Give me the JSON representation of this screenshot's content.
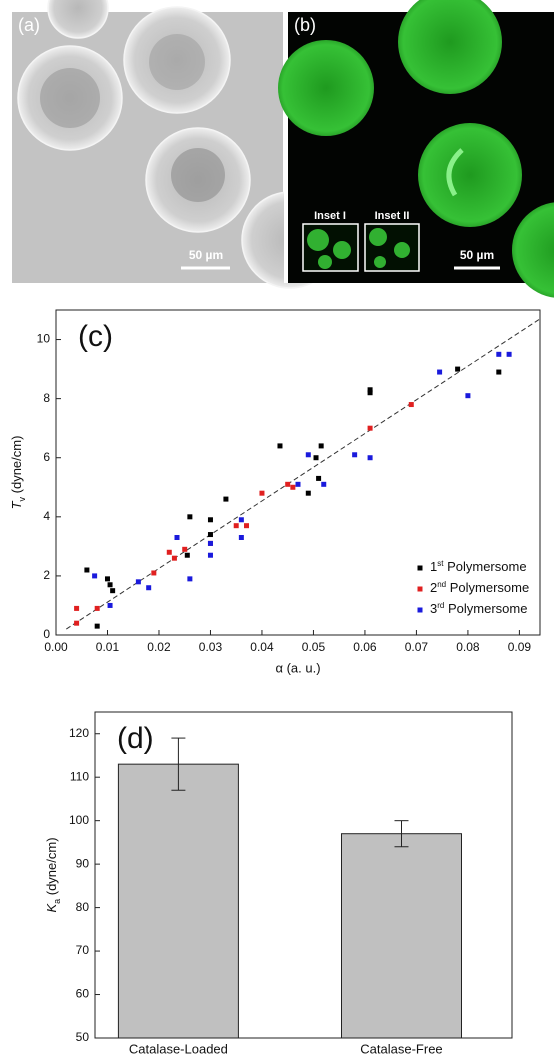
{
  "images": {
    "panel_a": {
      "label": "(a)",
      "scale_bar": "50 µm"
    },
    "panel_b": {
      "label": "(b)",
      "scale_bar": "50 µm",
      "insets": [
        "Inset I",
        "Inset II"
      ]
    }
  },
  "chart_data": [
    {
      "type": "scatter",
      "panel_label": "(c)",
      "x_label": "α (a. u.)",
      "y_label": "Tv (dyne/cm)",
      "xlim": [
        0,
        0.094
      ],
      "ylim": [
        0,
        11
      ],
      "xticks": [
        {
          "value": 0,
          "label": "0.00"
        },
        {
          "value": 0.01,
          "label": "0.01"
        },
        {
          "value": 0.02,
          "label": "0.02"
        },
        {
          "value": 0.03,
          "label": "0.03"
        },
        {
          "value": 0.04,
          "label": "0.04"
        },
        {
          "value": 0.05,
          "label": "0.05"
        },
        {
          "value": 0.06,
          "label": "0.06"
        },
        {
          "value": 0.07,
          "label": "0.07"
        },
        {
          "value": 0.08,
          "label": "0.08"
        },
        {
          "value": 0.09,
          "label": "0.09"
        }
      ],
      "yticks": [
        0,
        2,
        4,
        6,
        8,
        10
      ],
      "legend": "lower right",
      "fit": {
        "color": "#333333",
        "x": [
          0.002,
          0.094
        ],
        "y": [
          0.2,
          10.7
        ]
      },
      "series": [
        {
          "name": "1st Polymersome",
          "color": "#000000",
          "x": [
            0.006,
            0.008,
            0.01,
            0.0105,
            0.011,
            0.0255,
            0.026,
            0.03,
            0.03,
            0.033,
            0.0435,
            0.049,
            0.0505,
            0.051,
            0.0515,
            0.061,
            0.061,
            0.078,
            0.086
          ],
          "values": [
            2.2,
            0.3,
            1.9,
            1.7,
            1.5,
            2.7,
            4.0,
            3.9,
            3.4,
            4.6,
            6.4,
            4.8,
            6.0,
            5.3,
            6.4,
            8.2,
            8.3,
            9.0,
            8.9
          ]
        },
        {
          "name": "2nd Polymersome",
          "color": "#e02020",
          "x": [
            0.004,
            0.004,
            0.008,
            0.019,
            0.022,
            0.023,
            0.025,
            0.03,
            0.035,
            0.037,
            0.04,
            0.045,
            0.046,
            0.061,
            0.069
          ],
          "values": [
            0.9,
            0.4,
            0.9,
            2.1,
            2.8,
            2.6,
            2.9,
            3.1,
            3.7,
            3.7,
            4.8,
            5.1,
            5.0,
            7.0,
            7.8
          ]
        },
        {
          "name": "3rd Polymersome",
          "color": "#1a1adc",
          "x": [
            0.0075,
            0.0105,
            0.016,
            0.018,
            0.0235,
            0.026,
            0.03,
            0.03,
            0.036,
            0.036,
            0.047,
            0.049,
            0.052,
            0.058,
            0.061,
            0.0745,
            0.08,
            0.086,
            0.088
          ],
          "values": [
            2.0,
            1.0,
            1.8,
            1.6,
            3.3,
            1.9,
            2.7,
            3.1,
            3.9,
            3.3,
            5.1,
            6.1,
            5.1,
            6.1,
            6.0,
            8.9,
            8.1,
            9.5,
            9.5
          ]
        }
      ]
    },
    {
      "type": "bar",
      "panel_label": "(d)",
      "y_label": "Ka (dyne/cm)",
      "categories": [
        "Catalase-Loaded",
        "Catalase-Free"
      ],
      "values": [
        113,
        97
      ],
      "errors": [
        6,
        3
      ],
      "color": "#c0c0c0",
      "ylim": [
        50,
        125
      ],
      "yticks": [
        50,
        60,
        70,
        80,
        90,
        100,
        110,
        120
      ]
    }
  ]
}
